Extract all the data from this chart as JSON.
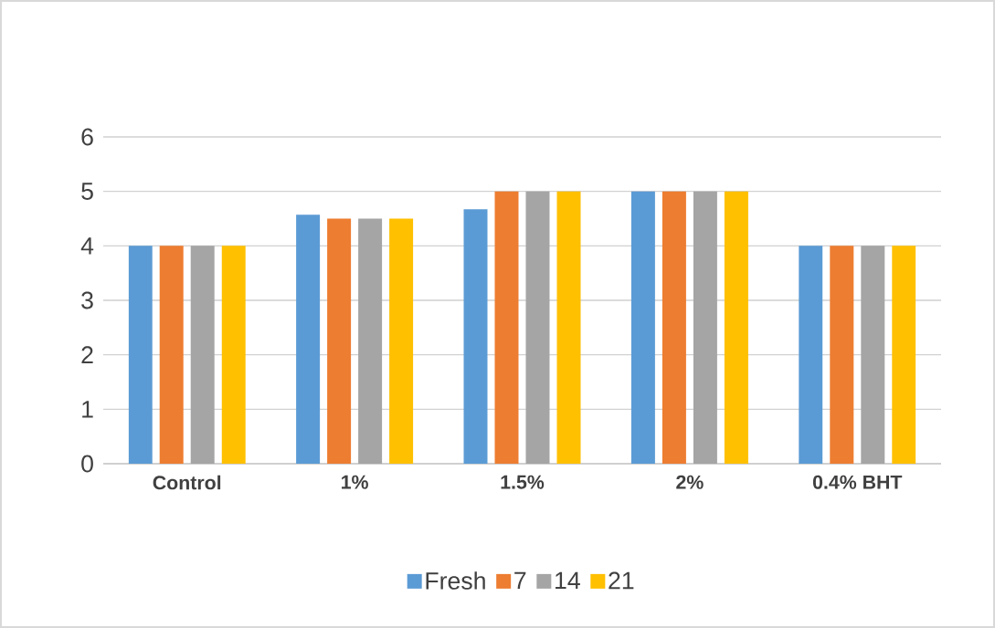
{
  "chart_data": {
    "type": "bar",
    "categories": [
      "Control",
      "1%",
      "1.5%",
      "2%",
      "0.4% BHT"
    ],
    "series": [
      {
        "name": "Fresh",
        "color": "#5b9bd5",
        "values": [
          4,
          4.57,
          4.67,
          5,
          4
        ]
      },
      {
        "name": "7",
        "color": "#ed7d31",
        "values": [
          4,
          4.5,
          5,
          5,
          4
        ]
      },
      {
        "name": "14",
        "color": "#a5a5a5",
        "values": [
          4,
          4.5,
          5,
          5,
          4
        ]
      },
      {
        "name": "21",
        "color": "#ffc000",
        "values": [
          4,
          4.5,
          5,
          5,
          4
        ]
      }
    ],
    "ylim": [
      0,
      6
    ],
    "yticks": [
      0,
      1,
      2,
      3,
      4,
      5,
      6
    ],
    "grid": "y",
    "legend": "bottom"
  }
}
